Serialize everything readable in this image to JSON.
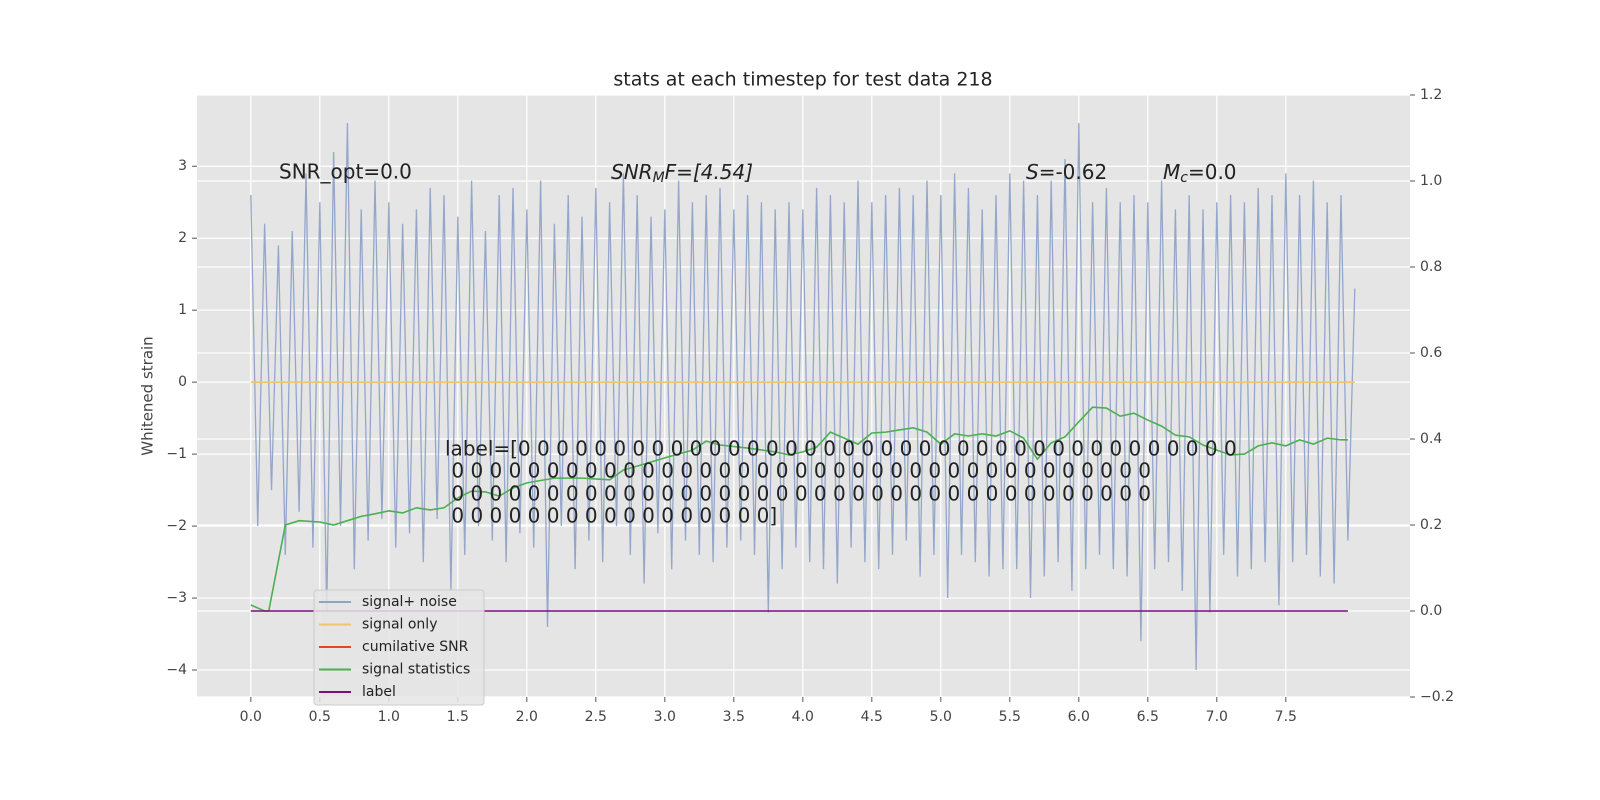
{
  "chart_data": {
    "type": "line",
    "title": "stats at each timestep for test data 218",
    "y_label": "Whitened strain",
    "xlim": [
      -0.39,
      8.4
    ],
    "ylim": [
      -4.375,
      3.99
    ],
    "y2lim": [
      -0.2,
      1.2
    ],
    "xticks": [
      {
        "value": 0,
        "label": "0.0"
      },
      {
        "value": 0.5,
        "label": "0.5"
      },
      {
        "value": 1,
        "label": "1.0"
      },
      {
        "value": 1.5,
        "label": "1.5"
      },
      {
        "value": 2,
        "label": "2.0"
      },
      {
        "value": 2.5,
        "label": "2.5"
      },
      {
        "value": 3,
        "label": "3.0"
      },
      {
        "value": 3.5,
        "label": "3.5"
      },
      {
        "value": 4,
        "label": "4.0"
      },
      {
        "value": 4.5,
        "label": "4.5"
      },
      {
        "value": 5,
        "label": "5.0"
      },
      {
        "value": 5.5,
        "label": "5.5"
      },
      {
        "value": 6,
        "label": "6.0"
      },
      {
        "value": 6.5,
        "label": "6.5"
      },
      {
        "value": 7,
        "label": "7.0"
      },
      {
        "value": 7.5,
        "label": "7.5"
      }
    ],
    "yticks": [
      {
        "value": -4,
        "label": "−4"
      },
      {
        "value": -3,
        "label": "−3"
      },
      {
        "value": -2,
        "label": "−2"
      },
      {
        "value": -1,
        "label": "−1"
      },
      0,
      1,
      2,
      3
    ],
    "y2ticks": [
      {
        "value": -0.2,
        "label": "−0.2"
      },
      {
        "value": 0,
        "label": "0.0"
      },
      {
        "value": 0.2,
        "label": "0.2"
      },
      {
        "value": 0.4,
        "label": "0.4"
      },
      {
        "value": 0.6,
        "label": "0.6"
      },
      {
        "value": 0.8,
        "label": "0.8"
      },
      {
        "value": 1,
        "label": "1.0"
      },
      {
        "value": 1.2,
        "label": "1.2"
      }
    ],
    "grid": true,
    "legend": "lower left",
    "series": [
      {
        "name": "signal+ noise",
        "color": "#8fa3c8",
        "x": [
          0,
          0.05,
          0.1,
          0.15,
          0.2,
          0.25,
          0.3,
          0.35,
          0.4,
          0.45,
          0.5,
          0.55,
          0.6,
          0.65,
          0.7,
          0.75,
          0.8,
          0.85,
          0.9,
          0.95,
          1,
          1.05,
          1.1,
          1.15,
          1.2,
          1.25,
          1.3,
          1.35,
          1.4,
          1.45,
          1.5,
          1.55,
          1.6,
          1.65,
          1.7,
          1.75,
          1.8,
          1.85,
          1.9,
          1.95,
          2,
          2.05,
          2.1,
          2.15,
          2.2,
          2.25,
          2.3,
          2.35,
          2.4,
          2.45,
          2.5,
          2.55,
          2.6,
          2.65,
          2.7,
          2.75,
          2.8,
          2.85,
          2.9,
          2.95,
          3,
          3.05,
          3.1,
          3.15,
          3.2,
          3.25,
          3.3,
          3.35,
          3.4,
          3.45,
          3.5,
          3.55,
          3.6,
          3.65,
          3.7,
          3.75,
          3.8,
          3.85,
          3.9,
          3.95,
          4,
          4.05,
          4.1,
          4.15,
          4.2,
          4.25,
          4.3,
          4.35,
          4.4,
          4.45,
          4.5,
          4.55,
          4.6,
          4.65,
          4.7,
          4.75,
          4.8,
          4.85,
          4.9,
          4.95,
          5,
          5.05,
          5.1,
          5.15,
          5.2,
          5.25,
          5.3,
          5.35,
          5.4,
          5.45,
          5.5,
          5.55,
          5.6,
          5.65,
          5.7,
          5.75,
          5.8,
          5.85,
          5.9,
          5.95,
          6,
          6.05,
          6.1,
          6.15,
          6.2,
          6.25,
          6.3,
          6.35,
          6.4,
          6.45,
          6.5,
          6.55,
          6.6,
          6.65,
          6.7,
          6.75,
          6.8,
          6.85,
          6.9,
          6.95,
          7,
          7.05,
          7.1,
          7.15,
          7.2,
          7.25,
          7.3,
          7.35,
          7.4,
          7.45,
          7.5,
          7.55,
          7.6,
          7.65,
          7.7,
          7.75,
          7.8,
          7.85,
          7.9,
          7.95,
          8
        ],
        "values": [
          2.6,
          -2.0,
          2.2,
          -1.5,
          1.9,
          -2.4,
          2.1,
          -1.8,
          2.9,
          -2.3,
          2.5,
          -3.2,
          3.2,
          -2.0,
          3.6,
          -2.6,
          2.4,
          -2.2,
          2.8,
          -1.9,
          2.5,
          -2.3,
          2.2,
          -2.1,
          2.4,
          -2.5,
          2.7,
          -1.9,
          2.6,
          -2.9,
          2.3,
          -2.4,
          2.8,
          -2.0,
          2.1,
          -2.2,
          2.6,
          -2.5,
          2.7,
          -2.1,
          2.4,
          -2.3,
          2.8,
          -3.4,
          2.2,
          -2.0,
          2.6,
          -2.6,
          2.3,
          -2.2,
          2.7,
          -2.5,
          2.5,
          -2.0,
          2.9,
          -2.4,
          2.6,
          -2.8,
          2.3,
          -2.1,
          2.4,
          -2.6,
          2.8,
          -2.2,
          2.5,
          -2.4,
          2.6,
          -2.5,
          2.7,
          -2.3,
          2.4,
          -2.2,
          2.6,
          -2.4,
          2.5,
          -3.2,
          2.4,
          -2.6,
          2.5,
          -2.3,
          2.4,
          -2.5,
          2.7,
          -2.6,
          2.6,
          -2.8,
          2.5,
          -2.3,
          2.8,
          -2.5,
          2.5,
          -2.6,
          2.6,
          -2.4,
          2.7,
          -2.2,
          2.6,
          -2.7,
          2.8,
          -2.4,
          2.6,
          -3.0,
          2.9,
          -2.4,
          2.7,
          -2.5,
          2.4,
          -2.7,
          2.6,
          -2.6,
          2.9,
          -2.6,
          2.8,
          -3.0,
          2.6,
          -2.7,
          2.8,
          -2.5,
          3.1,
          -2.9,
          3.6,
          -2.6,
          2.5,
          -2.4,
          2.7,
          -2.6,
          2.5,
          -2.7,
          2.6,
          -3.6,
          2.5,
          -2.6,
          2.8,
          -2.5,
          2.4,
          -2.9,
          2.6,
          -4.0,
          2.4,
          -3.2,
          2.5,
          -2.4,
          2.6,
          -2.7,
          2.5,
          -2.6,
          2.7,
          -2.5,
          2.6,
          -3.1,
          2.9,
          -2.5,
          2.6,
          -2.4,
          2.8,
          -2.7,
          2.5,
          -2.8,
          2.6,
          -2.2,
          1.3
        ]
      },
      {
        "name": "signal only",
        "color": "#f2c46d",
        "x": [
          0,
          8
        ],
        "values": [
          0,
          0
        ]
      },
      {
        "name": "cumilative SNR",
        "color": "#e8432a",
        "x": [],
        "values": []
      },
      {
        "name": "signal statistics",
        "color": "#4caf50",
        "axis": "y2",
        "x": [
          0,
          0.1,
          0.13,
          0.25,
          0.35,
          0.5,
          0.6,
          0.7,
          0.8,
          0.9,
          1,
          1.1,
          1.2,
          1.3,
          1.4,
          1.5,
          1.6,
          1.7,
          1.8,
          1.9,
          2,
          2.2,
          2.4,
          2.6,
          2.7,
          2.8,
          3,
          3.2,
          3.3,
          3.4,
          3.6,
          3.8,
          3.9,
          4,
          4.1,
          4.2,
          4.3,
          4.4,
          4.5,
          4.6,
          4.7,
          4.8,
          4.9,
          5,
          5.1,
          5.2,
          5.3,
          5.4,
          5.5,
          5.6,
          5.7,
          5.8,
          5.9,
          6,
          6.1,
          6.2,
          6.3,
          6.4,
          6.5,
          6.6,
          6.7,
          6.8,
          6.9,
          7,
          7.1,
          7.2,
          7.3,
          7.4,
          7.5,
          7.6,
          7.7,
          7.8,
          7.9,
          7.95
        ],
        "values": [
          0.014,
          0,
          0,
          0.2,
          0.21,
          0.207,
          0.2,
          0.21,
          0.22,
          0.226,
          0.233,
          0.228,
          0.24,
          0.235,
          0.24,
          0.263,
          0.279,
          0.277,
          0.267,
          0.286,
          0.298,
          0.309,
          0.309,
          0.305,
          0.328,
          0.337,
          0.356,
          0.374,
          0.395,
          0.386,
          0.379,
          0.37,
          0.363,
          0.37,
          0.381,
          0.416,
          0.402,
          0.388,
          0.414,
          0.416,
          0.421,
          0.426,
          0.416,
          0.388,
          0.412,
          0.407,
          0.412,
          0.407,
          0.419,
          0.402,
          0.353,
          0.391,
          0.405,
          0.44,
          0.474,
          0.472,
          0.453,
          0.46,
          0.444,
          0.43,
          0.409,
          0.405,
          0.386,
          0.374,
          0.363,
          0.365,
          0.384,
          0.391,
          0.384,
          0.398,
          0.388,
          0.402,
          0.398,
          0.398
        ]
      },
      {
        "name": "label",
        "color": "#7b0f7b",
        "axis": "y2",
        "x": [
          0,
          7.95
        ],
        "values": [
          0,
          0
        ]
      }
    ],
    "annotations": {
      "snr_opt": "SNR_opt=0.0",
      "snr_mf": {
        "base": "SNR",
        "sub": "M",
        "rest": "F=[4.54]"
      },
      "s": {
        "base": "S",
        "rest": "=-0.62"
      },
      "mc": {
        "base": "M",
        "sub": "c",
        "rest": "=0.0"
      },
      "label_lines": [
        "label=[0 0 0 0 0 0 0 0 0 0 0 0 0 0 0 0 0 0 0 0 0 0 0 0 0 0 0 0 0 0 0 0 0 0 0 0 0 0",
        " 0 0 0 0 0 0 0 0 0 0 0 0 0 0 0 0 0 0 0 0 0 0 0 0 0 0 0 0 0 0 0 0 0 0 0 0 0",
        " 0 0 0 0 0 0 0 0 0 0 0 0 0 0 0 0 0 0 0 0 0 0 0 0 0 0 0 0 0 0 0 0 0 0 0 0 0",
        " 0 0 0 0 0 0 0 0 0 0 0 0 0 0 0 0 0]"
      ]
    }
  }
}
